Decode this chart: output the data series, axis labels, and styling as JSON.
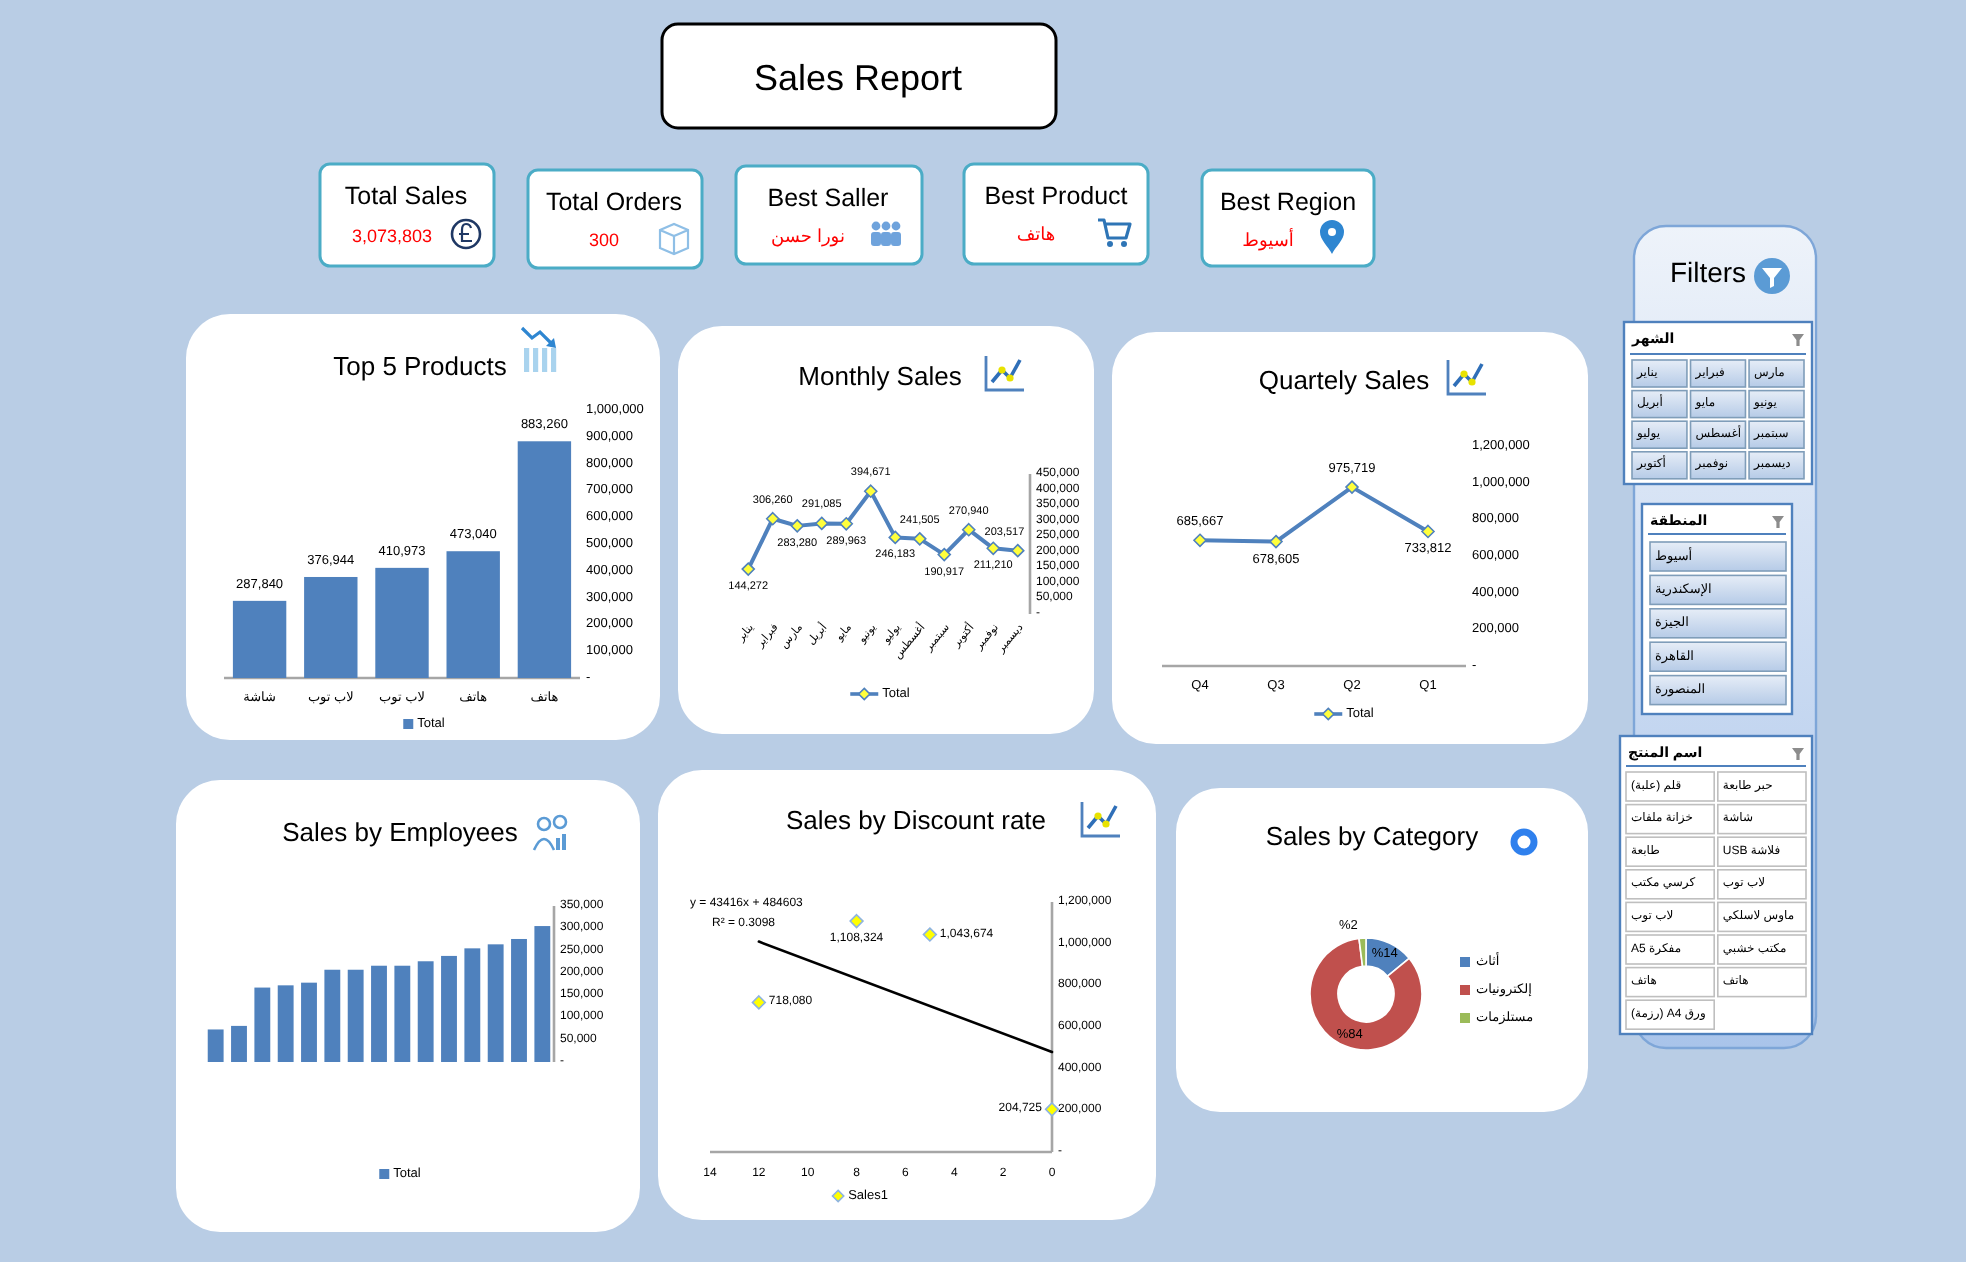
{
  "chart_data": [
    {
      "type": "other",
      "title": "Sales Report"
    },
    {
      "type": "other",
      "title": "Total Sales",
      "annotations": [
        "3,073,803"
      ]
    },
    {
      "type": "other",
      "title": "Total Orders",
      "annotations": [
        "300"
      ]
    },
    {
      "type": "other",
      "title": "Best Saller",
      "annotations": [
        "نورا حسن"
      ]
    },
    {
      "type": "other",
      "title": "Best Product",
      "annotations": [
        "هاتف"
      ]
    },
    {
      "type": "other",
      "title": "Best Region",
      "annotations": [
        "أسيوط"
      ]
    },
    {
      "type": "bar",
      "title": "Top 5 Products",
      "categories": [
        "شاشة",
        "لاب توب",
        "لاب توب",
        "هاتف",
        "هاتف"
      ],
      "series": [
        {
          "name": "Total",
          "color": "#4f81bd",
          "values": [
            287840,
            376944,
            410973,
            473040,
            883260
          ],
          "value_labels": [
            "287,840",
            "376,944",
            "410,973",
            "473,040",
            "883,260"
          ]
        }
      ],
      "ylim": [
        0,
        1000000
      ],
      "yticks": [
        {
          "value": 0,
          "label": "-"
        },
        {
          "value": 100000,
          "label": "100,000"
        },
        {
          "value": 200000,
          "label": "200,000"
        },
        {
          "value": 300000,
          "label": "300,000"
        },
        {
          "value": 400000,
          "label": "400,000"
        },
        {
          "value": 500000,
          "label": "500,000"
        },
        {
          "value": 600000,
          "label": "600,000"
        },
        {
          "value": 700000,
          "label": "700,000"
        },
        {
          "value": 800000,
          "label": "800,000"
        },
        {
          "value": 900000,
          "label": "900,000"
        },
        {
          "value": 1000000,
          "label": "1,000,000"
        }
      ],
      "legend": "bottom"
    },
    {
      "type": "line",
      "title": "Monthly Sales",
      "categories": [
        "يناير",
        "فبراير",
        "مارس",
        "أبريل",
        "مايو",
        "يونيو",
        "يوليو",
        "أغسطس",
        "سبتمبر",
        "أكتوبر",
        "نوفمبر",
        "ديسمبر"
      ],
      "series": [
        {
          "name": "Total",
          "color": "#4f81bd",
          "values": [
            144272,
            306260,
            283280,
            291085,
            289963,
            394671,
            246183,
            241505,
            190917,
            270940,
            211210,
            203517
          ],
          "value_labels": [
            "144,272",
            "306,260",
            "283,280",
            "291,085",
            "289,963",
            "394,671",
            "246,183",
            "241,505",
            "190,917",
            "270,940",
            "211,210",
            "203,517"
          ]
        }
      ],
      "ylim": [
        0,
        450000
      ],
      "yticks": [
        {
          "value": 0,
          "label": "-"
        },
        {
          "value": 50000,
          "label": "50,000"
        },
        {
          "value": 100000,
          "label": "100,000"
        },
        {
          "value": 150000,
          "label": "150,000"
        },
        {
          "value": 200000,
          "label": "200,000"
        },
        {
          "value": 250000,
          "label": "250,000"
        },
        {
          "value": 300000,
          "label": "300,000"
        },
        {
          "value": 350000,
          "label": "350,000"
        },
        {
          "value": 400000,
          "label": "400,000"
        },
        {
          "value": 450000,
          "label": "450,000"
        }
      ],
      "marker": "diamond",
      "legend": "bottom"
    },
    {
      "type": "line",
      "title": "Quartely Sales",
      "categories": [
        "Q4",
        "Q3",
        "Q2",
        "Q1"
      ],
      "series": [
        {
          "name": "Total",
          "color": "#4f81bd",
          "values": [
            685667,
            678605,
            975719,
            733812
          ],
          "value_labels": [
            "685,667",
            "678,605",
            "975,719",
            "733,812"
          ]
        }
      ],
      "ylim": [
        0,
        1200000
      ],
      "yticks": [
        {
          "value": 0,
          "label": "-"
        },
        {
          "value": 200000,
          "label": "200,000"
        },
        {
          "value": 400000,
          "label": "400,000"
        },
        {
          "value": 600000,
          "label": "600,000"
        },
        {
          "value": 800000,
          "label": "800,000"
        },
        {
          "value": 1000000,
          "label": "1,000,000"
        },
        {
          "value": 1200000,
          "label": "1,200,000"
        }
      ],
      "marker": "diamond",
      "legend": "bottom"
    },
    {
      "type": "other",
      "title": "Filters"
    },
    {
      "type": "other",
      "title": "الشهر",
      "categories": [
        "يناير",
        "فبراير",
        "مارس",
        "أبريل",
        "مايو",
        "يونيو",
        "يوليو",
        "أغسطس",
        "سبتمبر",
        "أكتوبر",
        "نوفمبر",
        "ديسمبر"
      ]
    },
    {
      "type": "other",
      "title": "المنطقة",
      "categories": [
        "أسيوط",
        "الإسكندرية",
        "الجيزة",
        "القاهرة",
        "المنصورة"
      ]
    },
    {
      "type": "other",
      "title": "اسم المنتج",
      "categories": [
        "قلم (علبة)",
        "حبر طابعة",
        "خزانة ملفات",
        "شاشة",
        "طابعة",
        "فلاشة USB",
        "كرسي مكتب",
        "لاب توب",
        "لاب توب",
        "ماوس لاسلكي",
        "مفكرة A5",
        "مكتب خشبي",
        "هاتف",
        "هاتف",
        "ورق A4 (رزمة)"
      ]
    },
    {
      "type": "bar",
      "title": "Sales by Employees",
      "categories": [
        null,
        null,
        null,
        null,
        null,
        null,
        null,
        null,
        null,
        null,
        null,
        null,
        null,
        null,
        null
      ],
      "series": [
        {
          "name": "Total",
          "color": "#4f81bd",
          "values": [
            73000,
            81000,
            167000,
            172000,
            178000,
            207000,
            207000,
            216000,
            216000,
            226000,
            238000,
            255000,
            264000,
            276000,
            305000
          ]
        }
      ],
      "ylim": [
        0,
        350000
      ],
      "yticks": [
        {
          "value": 0,
          "label": "-"
        },
        {
          "value": 50000,
          "label": "50,000"
        },
        {
          "value": 100000,
          "label": "100,000"
        },
        {
          "value": 150000,
          "label": "150,000"
        },
        {
          "value": 200000,
          "label": "200,000"
        },
        {
          "value": 250000,
          "label": "250,000"
        },
        {
          "value": 300000,
          "label": "300,000"
        },
        {
          "value": 350000,
          "label": "350,000"
        }
      ],
      "legend": "bottom"
    },
    {
      "type": "scatter",
      "title": "Sales by Discount rate",
      "series": [
        {
          "name": "Sales1",
          "color": "#ffff00",
          "x": [
            12,
            8,
            5,
            0
          ],
          "values": [
            718080,
            1108324,
            1043674,
            204725
          ],
          "value_labels": [
            "718,080",
            "1,108,324",
            "1,043,674",
            "204,725"
          ]
        },
        {
          "type": "line",
          "color": "#000000",
          "marker": "none",
          "x": [
            12,
            0
          ],
          "values": [
            1010000,
            480000
          ]
        }
      ],
      "xlim": [
        14,
        0
      ],
      "xticks": [
        14,
        12,
        10,
        8,
        6,
        4,
        2,
        0
      ],
      "ylim": [
        0,
        1200000
      ],
      "yticks": [
        {
          "value": 0,
          "label": "-"
        },
        {
          "value": 200000,
          "label": "200,000"
        },
        {
          "value": 400000,
          "label": "400,000"
        },
        {
          "value": 600000,
          "label": "600,000"
        },
        {
          "value": 800000,
          "label": "800,000"
        },
        {
          "value": 1000000,
          "label": "1,000,000"
        },
        {
          "value": 1200000,
          "label": "1,200,000"
        }
      ],
      "marker": "diamond",
      "legend": "bottom",
      "annotations": [
        "y = 43416x + 484603",
        "R² = 0.3098"
      ]
    },
    {
      "type": "donut",
      "title": "Sales by Category",
      "categories": [
        "أثاث",
        "إلكترونيات",
        "مستلزمات"
      ],
      "values": [
        14,
        84,
        2
      ],
      "colors": [
        "#4f81bd",
        "#c0504d",
        "#9bbb59"
      ],
      "value_labels": [
        "%14",
        "%84",
        "%2"
      ],
      "legend": "right"
    }
  ]
}
